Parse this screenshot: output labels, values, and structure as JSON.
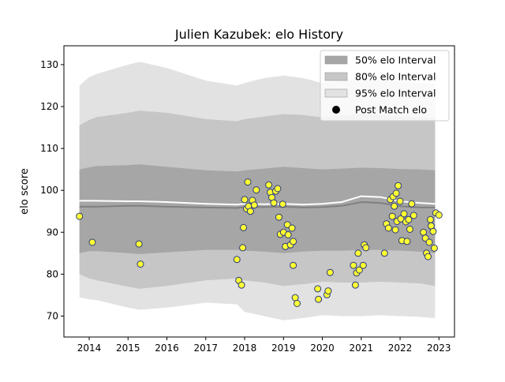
{
  "chart_data": {
    "type": "line",
    "title": "Julien Kazubek: elo History",
    "xlabel": "",
    "ylabel": "elo score",
    "xlim": [
      2013.35,
      2023.4
    ],
    "ylim": [
      65.0,
      134.5
    ],
    "x_ticks": [
      "2014",
      "2015",
      "2016",
      "2017",
      "2018",
      "2019",
      "2020",
      "2021",
      "2022",
      "2023"
    ],
    "y_ticks": [
      "70",
      "80",
      "90",
      "100",
      "110",
      "120",
      "130"
    ],
    "grid": false,
    "legend_position": "upper right",
    "legend": [
      "50% elo Interval",
      "80% elo Interval",
      "95% elo Interval",
      "Post Match elo"
    ],
    "colors": {
      "band50": "#a6a6a6",
      "band80": "#c6c6c6",
      "band95": "#e2e2e2",
      "median": "#808080",
      "mean": "#ffffff",
      "point_fill": "#ffff33",
      "point_edge": "#2b3a78",
      "legend_point": "#000000"
    },
    "bands": {
      "x": [
        2013.75,
        2014.0,
        2014.2,
        2015.0,
        2015.3,
        2016.0,
        2017.0,
        2017.8,
        2018.0,
        2018.5,
        2019.0,
        2019.5,
        2020.0,
        2020.5,
        2021.0,
        2021.5,
        2022.0,
        2022.5,
        2022.9
      ],
      "p95_upper": [
        125.0,
        127.0,
        127.8,
        130.0,
        130.7,
        129.2,
        126.2,
        125.0,
        125.6,
        126.8,
        127.4,
        126.8,
        125.6,
        126.2,
        126.8,
        126.4,
        126.0,
        125.6,
        125.4
      ],
      "p80_upper": [
        115.5,
        116.8,
        117.5,
        118.5,
        119.0,
        118.5,
        117.0,
        116.5,
        117.0,
        117.6,
        118.2,
        118.0,
        117.4,
        117.8,
        118.2,
        118.0,
        117.6,
        117.4,
        117.2
      ],
      "p50_upper": [
        105.0,
        105.5,
        105.8,
        106.0,
        106.2,
        105.6,
        104.8,
        104.5,
        104.8,
        105.2,
        105.6,
        105.3,
        105.0,
        105.2,
        105.4,
        105.3,
        105.1,
        105.0,
        104.8
      ],
      "median": [
        96.1,
        96.1,
        96.1,
        96.3,
        96.3,
        96.1,
        95.9,
        95.8,
        96.0,
        96.0,
        96.1,
        95.9,
        96.0,
        96.3,
        97.2,
        97.0,
        96.2,
        95.9,
        95.9
      ],
      "mean": [
        97.5,
        97.5,
        97.5,
        97.4,
        97.4,
        97.2,
        96.8,
        96.6,
        96.8,
        96.7,
        96.8,
        96.6,
        96.8,
        97.2,
        98.6,
        98.4,
        97.4,
        97.0,
        96.8
      ],
      "p50_lower": [
        85.0,
        85.5,
        85.5,
        85.0,
        84.8,
        85.2,
        85.8,
        85.8,
        85.6,
        85.4,
        85.0,
        85.4,
        85.6,
        85.6,
        85.8,
        85.8,
        85.6,
        85.4,
        85.0
      ],
      "p80_lower": [
        80.0,
        79.0,
        78.5,
        77.0,
        76.5,
        77.2,
        78.5,
        79.0,
        78.5,
        78.0,
        77.2,
        77.6,
        78.2,
        78.0,
        78.0,
        78.2,
        78.0,
        77.8,
        77.2
      ],
      "p95_lower": [
        74.5,
        74.0,
        73.8,
        72.0,
        71.5,
        72.0,
        73.2,
        72.8,
        71.0,
        70.0,
        69.0,
        69.5,
        70.2,
        70.0,
        70.0,
        70.2,
        70.0,
        69.8,
        69.5
      ]
    },
    "points": [
      {
        "x": 2013.75,
        "y": 93.8
      },
      {
        "x": 2014.08,
        "y": 87.6
      },
      {
        "x": 2015.28,
        "y": 87.2
      },
      {
        "x": 2015.32,
        "y": 82.4
      },
      {
        "x": 2017.8,
        "y": 83.5
      },
      {
        "x": 2017.85,
        "y": 78.5
      },
      {
        "x": 2017.92,
        "y": 77.4
      },
      {
        "x": 2017.95,
        "y": 86.3
      },
      {
        "x": 2017.97,
        "y": 91.1
      },
      {
        "x": 2018.0,
        "y": 97.8
      },
      {
        "x": 2018.05,
        "y": 95.6
      },
      {
        "x": 2018.08,
        "y": 102.0
      },
      {
        "x": 2018.1,
        "y": 96.2
      },
      {
        "x": 2018.15,
        "y": 95.0
      },
      {
        "x": 2018.2,
        "y": 97.6
      },
      {
        "x": 2018.25,
        "y": 96.5
      },
      {
        "x": 2018.3,
        "y": 100.1
      },
      {
        "x": 2018.62,
        "y": 101.3
      },
      {
        "x": 2018.66,
        "y": 99.5
      },
      {
        "x": 2018.7,
        "y": 98.3
      },
      {
        "x": 2018.75,
        "y": 97.0
      },
      {
        "x": 2018.8,
        "y": 99.8
      },
      {
        "x": 2018.85,
        "y": 100.4
      },
      {
        "x": 2018.88,
        "y": 93.6
      },
      {
        "x": 2018.92,
        "y": 89.5
      },
      {
        "x": 2018.98,
        "y": 96.7
      },
      {
        "x": 2019.0,
        "y": 90.0
      },
      {
        "x": 2019.05,
        "y": 86.6
      },
      {
        "x": 2019.1,
        "y": 91.8
      },
      {
        "x": 2019.12,
        "y": 89.4
      },
      {
        "x": 2019.18,
        "y": 87.0
      },
      {
        "x": 2019.22,
        "y": 91.0
      },
      {
        "x": 2019.25,
        "y": 87.8
      },
      {
        "x": 2019.25,
        "y": 82.1
      },
      {
        "x": 2019.3,
        "y": 74.4
      },
      {
        "x": 2019.35,
        "y": 73.0
      },
      {
        "x": 2019.88,
        "y": 76.5
      },
      {
        "x": 2019.9,
        "y": 74.0
      },
      {
        "x": 2020.12,
        "y": 75.1
      },
      {
        "x": 2020.15,
        "y": 76.0
      },
      {
        "x": 2020.2,
        "y": 80.4
      },
      {
        "x": 2020.8,
        "y": 82.1
      },
      {
        "x": 2020.85,
        "y": 77.4
      },
      {
        "x": 2020.88,
        "y": 80.3
      },
      {
        "x": 2020.92,
        "y": 85.0
      },
      {
        "x": 2020.95,
        "y": 81.0
      },
      {
        "x": 2021.05,
        "y": 82.1
      },
      {
        "x": 2021.08,
        "y": 87.0
      },
      {
        "x": 2021.12,
        "y": 86.3
      },
      {
        "x": 2021.6,
        "y": 85.0
      },
      {
        "x": 2021.65,
        "y": 92.0
      },
      {
        "x": 2021.7,
        "y": 91.0
      },
      {
        "x": 2021.75,
        "y": 97.8
      },
      {
        "x": 2021.8,
        "y": 93.8
      },
      {
        "x": 2021.82,
        "y": 98.5
      },
      {
        "x": 2021.85,
        "y": 96.2
      },
      {
        "x": 2021.88,
        "y": 90.6
      },
      {
        "x": 2021.9,
        "y": 99.3
      },
      {
        "x": 2021.92,
        "y": 92.6
      },
      {
        "x": 2021.95,
        "y": 101.1
      },
      {
        "x": 2022.0,
        "y": 97.4
      },
      {
        "x": 2022.02,
        "y": 93.2
      },
      {
        "x": 2022.05,
        "y": 88.0
      },
      {
        "x": 2022.1,
        "y": 94.4
      },
      {
        "x": 2022.15,
        "y": 92.5
      },
      {
        "x": 2022.18,
        "y": 87.8
      },
      {
        "x": 2022.22,
        "y": 93.0
      },
      {
        "x": 2022.25,
        "y": 90.7
      },
      {
        "x": 2022.3,
        "y": 96.8
      },
      {
        "x": 2022.35,
        "y": 94.0
      },
      {
        "x": 2022.6,
        "y": 90.0
      },
      {
        "x": 2022.65,
        "y": 88.6
      },
      {
        "x": 2022.68,
        "y": 85.0
      },
      {
        "x": 2022.72,
        "y": 84.2
      },
      {
        "x": 2022.75,
        "y": 87.6
      },
      {
        "x": 2022.78,
        "y": 93.0
      },
      {
        "x": 2022.8,
        "y": 91.5
      },
      {
        "x": 2022.85,
        "y": 90.2
      },
      {
        "x": 2022.88,
        "y": 86.2
      },
      {
        "x": 2022.92,
        "y": 94.6
      },
      {
        "x": 2023.0,
        "y": 94.1
      }
    ]
  }
}
